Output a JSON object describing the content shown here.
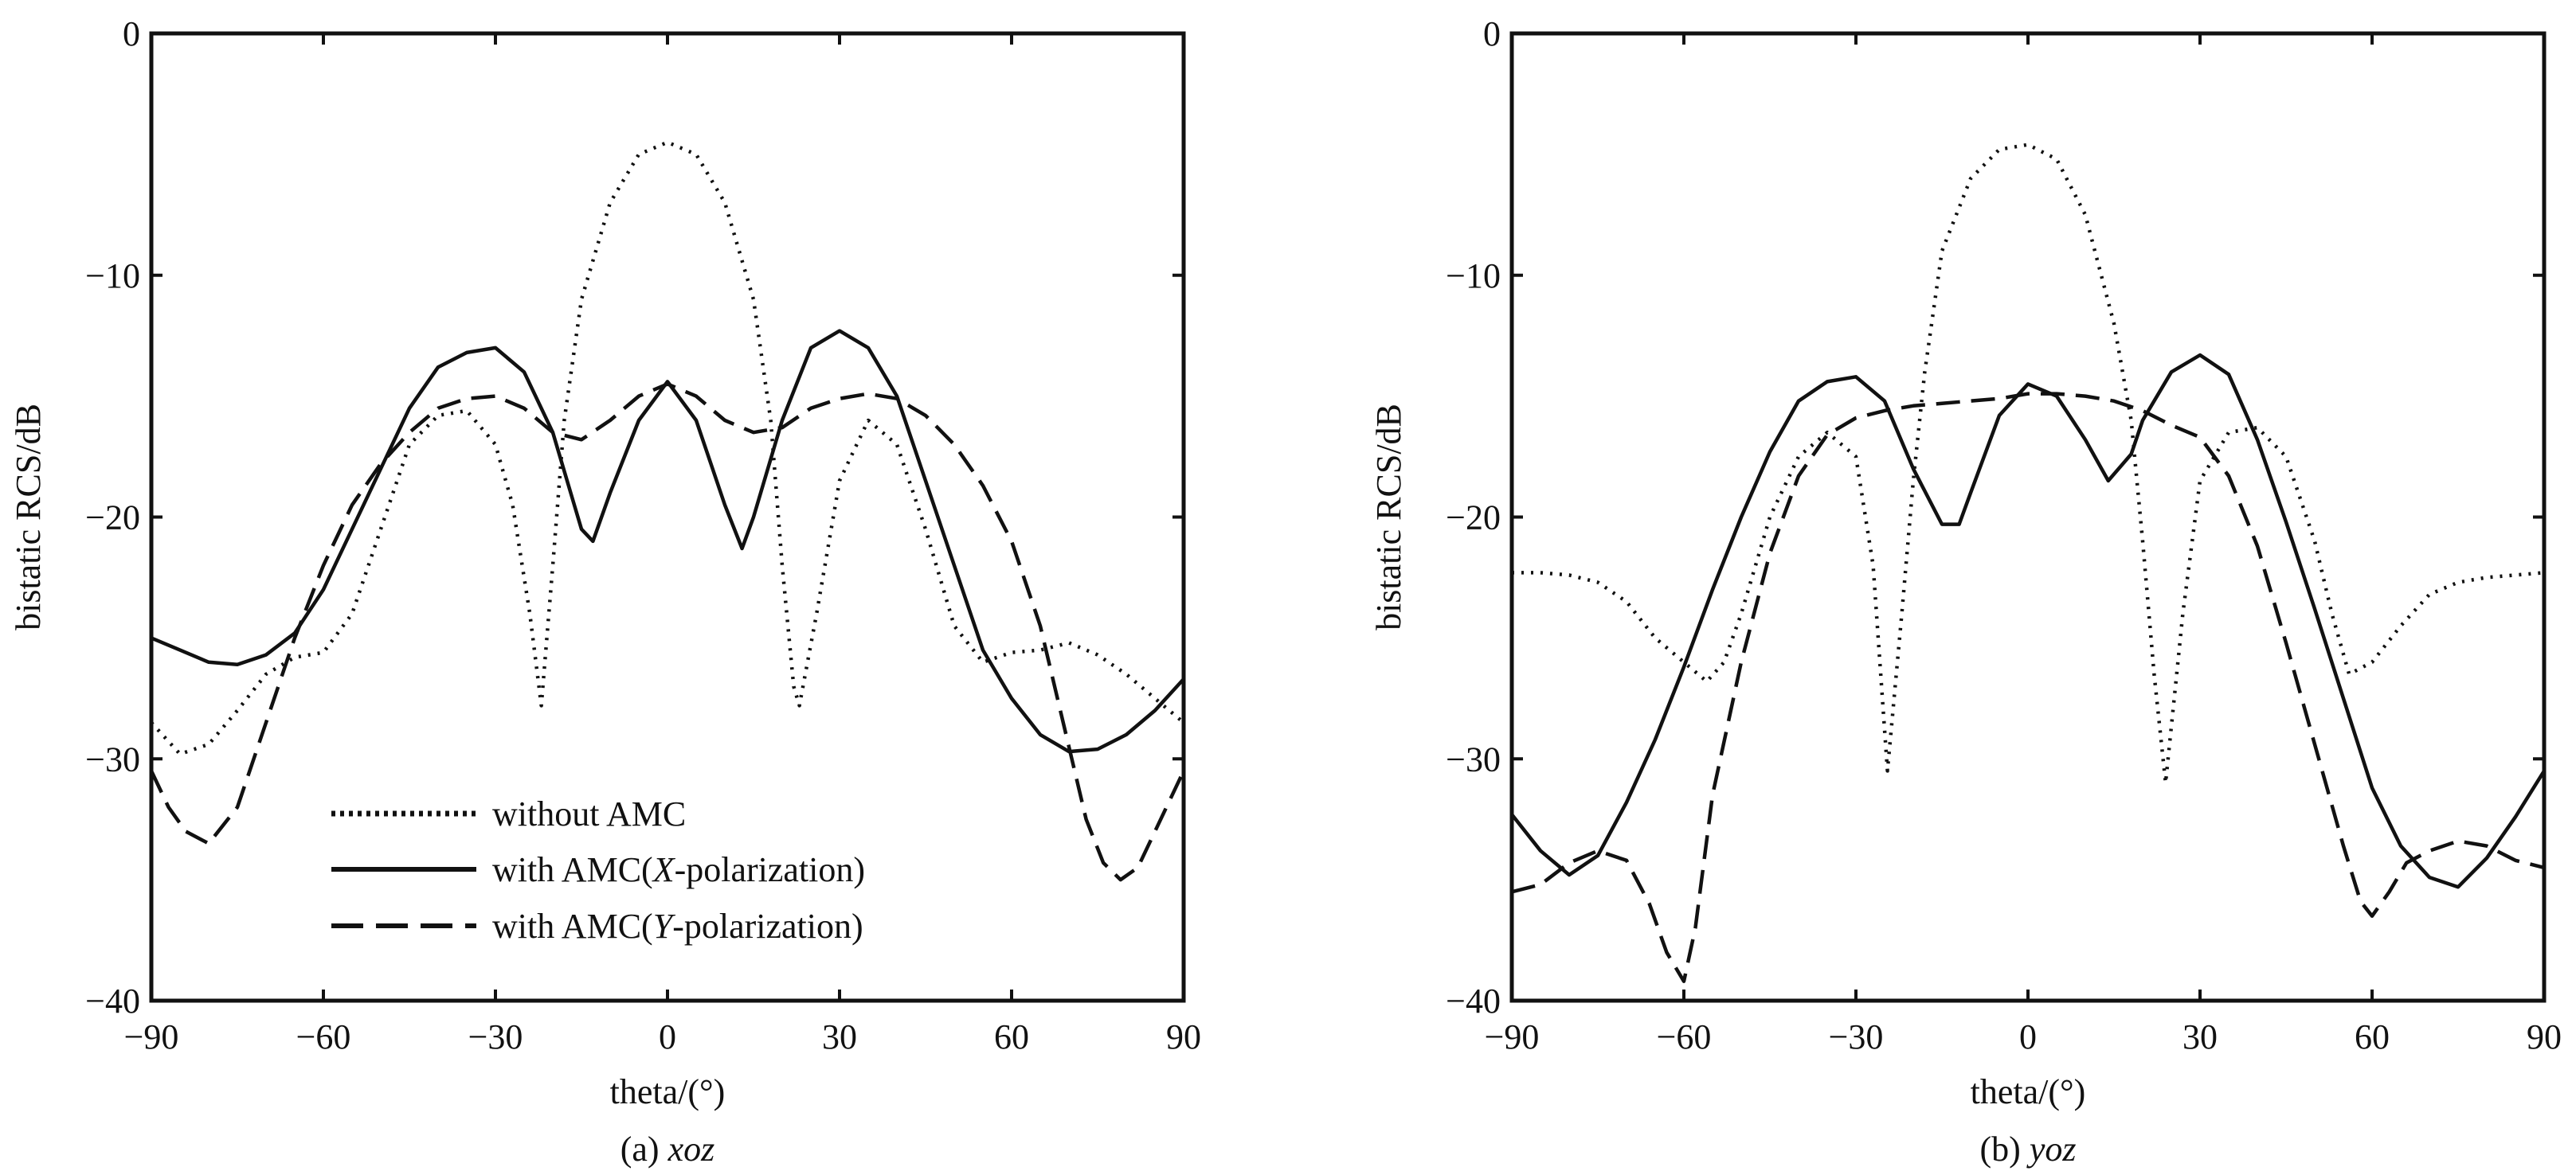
{
  "chart_data": [
    {
      "type": "line",
      "caption_prefix": "(a)",
      "caption_plane": "xoz",
      "xlabel": "theta/(°)",
      "ylabel": "bistatic RCS/dB",
      "xlim": [
        -90,
        90
      ],
      "ylim": [
        -40,
        0
      ],
      "xticks": [
        -90,
        -60,
        -30,
        0,
        30,
        60,
        90
      ],
      "yticks": [
        -40,
        -30,
        -20,
        -10,
        0
      ],
      "xtick_labels": [
        "−90",
        "−60",
        "−30",
        "0",
        "30",
        "60",
        "90"
      ],
      "ytick_labels": [
        "−40",
        "−30",
        "−20",
        "−10",
        "0"
      ],
      "grid": false,
      "legend_position": "bottom-left",
      "series": [
        {
          "name": "without AMC",
          "style": "dotted",
          "x": [
            -90,
            -85,
            -80,
            -75,
            -70,
            -65,
            -60,
            -55,
            -50,
            -45,
            -40,
            -35,
            -30,
            -27,
            -24,
            -22,
            -20,
            -18,
            -15,
            -10,
            -5,
            0,
            5,
            10,
            15,
            18,
            20,
            22,
            23,
            26,
            30,
            35,
            40,
            45,
            50,
            55,
            60,
            65,
            70,
            75,
            80,
            85,
            90
          ],
          "y": [
            -28.5,
            -29.8,
            -29.4,
            -28,
            -26.5,
            -25.8,
            -25.6,
            -24,
            -20.5,
            -17,
            -15.8,
            -15.6,
            -17,
            -19.5,
            -24,
            -27.8,
            -22,
            -16,
            -11,
            -7,
            -5,
            -4.5,
            -5,
            -7,
            -11,
            -16,
            -22,
            -27,
            -27.8,
            -24,
            -18.5,
            -16,
            -17,
            -20.5,
            -24.5,
            -26,
            -25.6,
            -25.5,
            -25.2,
            -25.7,
            -26.5,
            -27.5,
            -28.5
          ]
        },
        {
          "name": "with AMC(X-polarization)",
          "style": "solid",
          "x": [
            -90,
            -85,
            -80,
            -75,
            -70,
            -65,
            -60,
            -55,
            -50,
            -45,
            -40,
            -35,
            -30,
            -25,
            -20,
            -15,
            -13,
            -10,
            -5,
            0,
            5,
            10,
            13,
            15,
            20,
            25,
            30,
            35,
            40,
            45,
            50,
            55,
            60,
            65,
            70,
            75,
            80,
            85,
            90
          ],
          "y": [
            -25,
            -25.5,
            -26,
            -26.1,
            -25.7,
            -24.8,
            -23,
            -20.5,
            -18,
            -15.5,
            -13.8,
            -13.2,
            -13,
            -14,
            -16.5,
            -20.5,
            -21,
            -19,
            -16,
            -14.4,
            -16,
            -19.5,
            -21.3,
            -20,
            -16,
            -13,
            -12.3,
            -13,
            -15,
            -18.5,
            -22,
            -25.5,
            -27.5,
            -29,
            -29.7,
            -29.6,
            -29,
            -28,
            -26.7
          ]
        },
        {
          "name": "with AMC(Y-polarization)",
          "style": "dashed",
          "x": [
            -90,
            -87,
            -84,
            -80,
            -75,
            -70,
            -65,
            -60,
            -55,
            -50,
            -45,
            -40,
            -35,
            -30,
            -25,
            -20,
            -15,
            -10,
            -5,
            0,
            5,
            10,
            15,
            20,
            25,
            30,
            35,
            40,
            45,
            50,
            55,
            60,
            65,
            70,
            73,
            76,
            79,
            82,
            85,
            88,
            90
          ],
          "y": [
            -30.5,
            -32,
            -33,
            -33.5,
            -32,
            -28.5,
            -25,
            -22,
            -19.5,
            -17.8,
            -16.5,
            -15.5,
            -15.1,
            -15,
            -15.5,
            -16.5,
            -16.8,
            -16,
            -15,
            -14.5,
            -15,
            -16,
            -16.5,
            -16.3,
            -15.5,
            -15.1,
            -14.9,
            -15.1,
            -15.8,
            -17,
            -18.7,
            -21,
            -24.5,
            -29.5,
            -32.5,
            -34.3,
            -35,
            -34.5,
            -33,
            -31.5,
            -30.5
          ]
        }
      ]
    },
    {
      "type": "line",
      "caption_prefix": "(b)",
      "caption_plane": "yoz",
      "xlabel": "theta/(°)",
      "ylabel": "bistatic RCS/dB",
      "xlim": [
        -90,
        90
      ],
      "ylim": [
        -40,
        0
      ],
      "xticks": [
        -90,
        -60,
        -30,
        0,
        30,
        60,
        90
      ],
      "yticks": [
        -40,
        -30,
        -20,
        -10,
        0
      ],
      "xtick_labels": [
        "−90",
        "−60",
        "−30",
        "0",
        "30",
        "60",
        "90"
      ],
      "ytick_labels": [
        "−40",
        "−30",
        "−20",
        "−10",
        "0"
      ],
      "grid": false,
      "series": [
        {
          "name": "without AMC",
          "style": "dotted",
          "x": [
            -90,
            -85,
            -80,
            -75,
            -70,
            -65,
            -60,
            -56,
            -53,
            -50,
            -45,
            -40,
            -35,
            -30,
            -27,
            -24.5,
            -22,
            -20,
            -18,
            -15,
            -10,
            -5,
            0,
            5,
            10,
            15,
            18,
            20,
            22,
            24,
            27,
            30,
            35,
            40,
            45,
            50,
            53,
            56,
            60,
            65,
            70,
            75,
            80,
            85,
            90
          ],
          "y": [
            -22.3,
            -22.3,
            -22.4,
            -22.7,
            -23.5,
            -25,
            -26,
            -26.8,
            -26,
            -24,
            -20,
            -17.5,
            -16.5,
            -17.5,
            -22,
            -30.5,
            -24,
            -18.5,
            -14,
            -9,
            -6,
            -4.8,
            -4.6,
            -5.2,
            -7.5,
            -12,
            -16,
            -21,
            -26.5,
            -31,
            -24,
            -18.5,
            -16.5,
            -16.3,
            -17.5,
            -21,
            -24,
            -26.5,
            -26,
            -24.5,
            -23.2,
            -22.7,
            -22.5,
            -22.4,
            -22.3
          ]
        },
        {
          "name": "with AMC(X-polarization)",
          "style": "solid",
          "x": [
            -90,
            -85,
            -80,
            -75,
            -70,
            -65,
            -60,
            -55,
            -50,
            -45,
            -40,
            -35,
            -30,
            -25,
            -20,
            -15,
            -12,
            -10,
            -5,
            0,
            5,
            10,
            14,
            18,
            20,
            25,
            30,
            35,
            40,
            45,
            50,
            55,
            60,
            65,
            70,
            75,
            80,
            85,
            90
          ],
          "y": [
            -32.3,
            -33.8,
            -34.8,
            -34,
            -31.8,
            -29.2,
            -26.2,
            -23,
            -20,
            -17.3,
            -15.2,
            -14.4,
            -14.2,
            -15.2,
            -18,
            -20.3,
            -20.3,
            -19,
            -15.8,
            -14.5,
            -15,
            -16.8,
            -18.5,
            -17.4,
            -16,
            -14,
            -13.3,
            -14.1,
            -16.8,
            -20.2,
            -23.8,
            -27.5,
            -31.2,
            -33.6,
            -34.9,
            -35.3,
            -34.1,
            -32.4,
            -30.5
          ]
        },
        {
          "name": "with AMC(Y-polarization)",
          "style": "dashed",
          "x": [
            -90,
            -85,
            -80,
            -75,
            -70,
            -66,
            -63,
            -60,
            -58,
            -55,
            -50,
            -45,
            -40,
            -35,
            -30,
            -25,
            -20,
            -15,
            -10,
            -5,
            0,
            5,
            10,
            15,
            20,
            25,
            30,
            35,
            40,
            45,
            50,
            55,
            58,
            60,
            63,
            66,
            70,
            75,
            80,
            85,
            90
          ],
          "y": [
            -35.5,
            -35.2,
            -34.3,
            -33.8,
            -34.2,
            -36,
            -38,
            -39.2,
            -37,
            -31.5,
            -26,
            -21.5,
            -18.3,
            -16.6,
            -15.9,
            -15.6,
            -15.4,
            -15.3,
            -15.2,
            -15.1,
            -14.9,
            -14.9,
            -15,
            -15.2,
            -15.6,
            -16.2,
            -16.7,
            -18.3,
            -21.2,
            -25.2,
            -29.4,
            -33.6,
            -35.9,
            -36.5,
            -35.5,
            -34.3,
            -33.8,
            -33.4,
            -33.6,
            -34.2,
            -34.5
          ]
        }
      ]
    }
  ]
}
